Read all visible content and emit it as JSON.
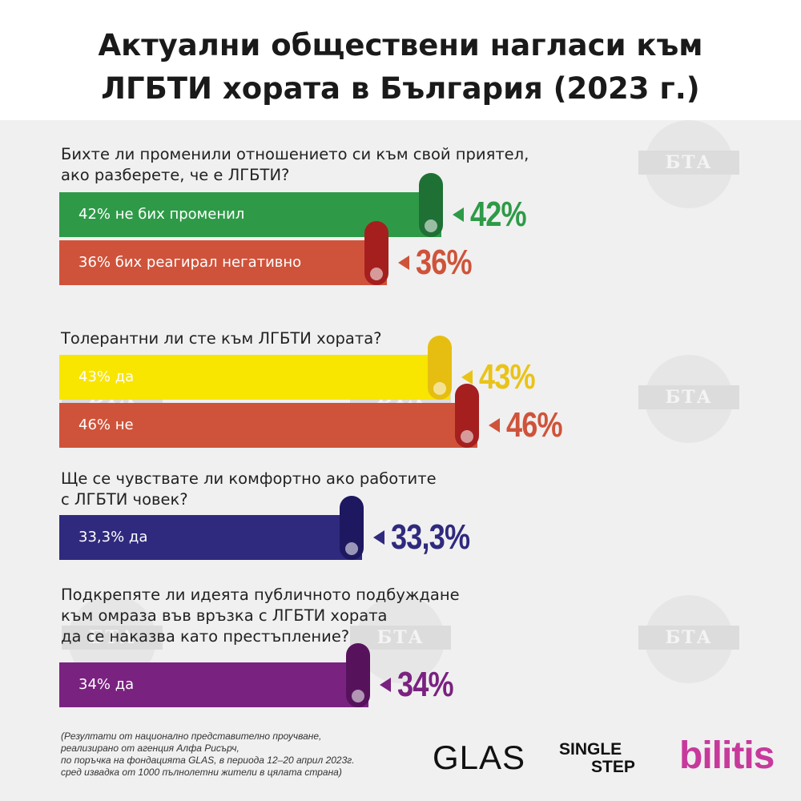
{
  "title_lines": [
    "Актуални обществени нагласи към",
    "ЛГБТИ хората в България (2023 г.)"
  ],
  "watermark_text": "БТА",
  "chart_data": {
    "type": "bar",
    "title": "Актуални обществени нагласи към ЛГБТИ хората в България (2023 г.)",
    "unit": "%",
    "groups": [
      {
        "question": [
          "Бихте ли променили отношението си към свой приятел,",
          "ако разберете, че е ЛГБТИ?"
        ],
        "bars": [
          {
            "label": "42% не бих променил",
            "value": 42,
            "value_label": "42%",
            "color": "#2e9a48",
            "roll_color": "#1f7034"
          },
          {
            "label": "36% бих реагирал негативно",
            "value": 36,
            "value_label": "36%",
            "color": "#cf533a",
            "roll_color": "#a51f1f"
          }
        ]
      },
      {
        "question": [
          "Толерантни ли сте към ЛГБТИ хората?"
        ],
        "bars": [
          {
            "label": "43% да",
            "value": 43,
            "value_label": "43%",
            "color": "#f8e500",
            "roll_color": "#e6be12",
            "pct_color": "#e9c318"
          },
          {
            "label": "46% не",
            "value": 46,
            "value_label": "46%",
            "color": "#cf533a",
            "roll_color": "#a51f1f"
          }
        ]
      },
      {
        "question": [
          "Ще се чувствате ли комфортно ако работите",
          "с ЛГБТИ човек?"
        ],
        "bars": [
          {
            "label": "33,3% да",
            "value": 33.3,
            "value_label": "33,3%",
            "color": "#2f2a7e",
            "roll_color": "#1d1860"
          }
        ]
      },
      {
        "question": [
          "Подкрепяте ли идеята публичното подбуждане",
          "към омраза във връзка с ЛГБТИ хората",
          "да се наказва като престъпление?"
        ],
        "bars": [
          {
            "label": "34% да",
            "value": 34,
            "value_label": "34%",
            "color": "#7a2280",
            "roll_color": "#56135c"
          }
        ]
      }
    ]
  },
  "footnote_lines": [
    "(Резултати от национално представително проучване,",
    "реализирано от агенция Алфа Рисърч,",
    "по поръчка  на фондацията GLAS,  в периода 12–20 април 2023г.",
    "сред извадка  от 1000 пълнолетни жители в цялата страна)"
  ],
  "logos": {
    "glas": "GLAS",
    "single_step_line1": "SINGLE",
    "single_step_line2": "STEP",
    "bilitis": "bilitis"
  }
}
